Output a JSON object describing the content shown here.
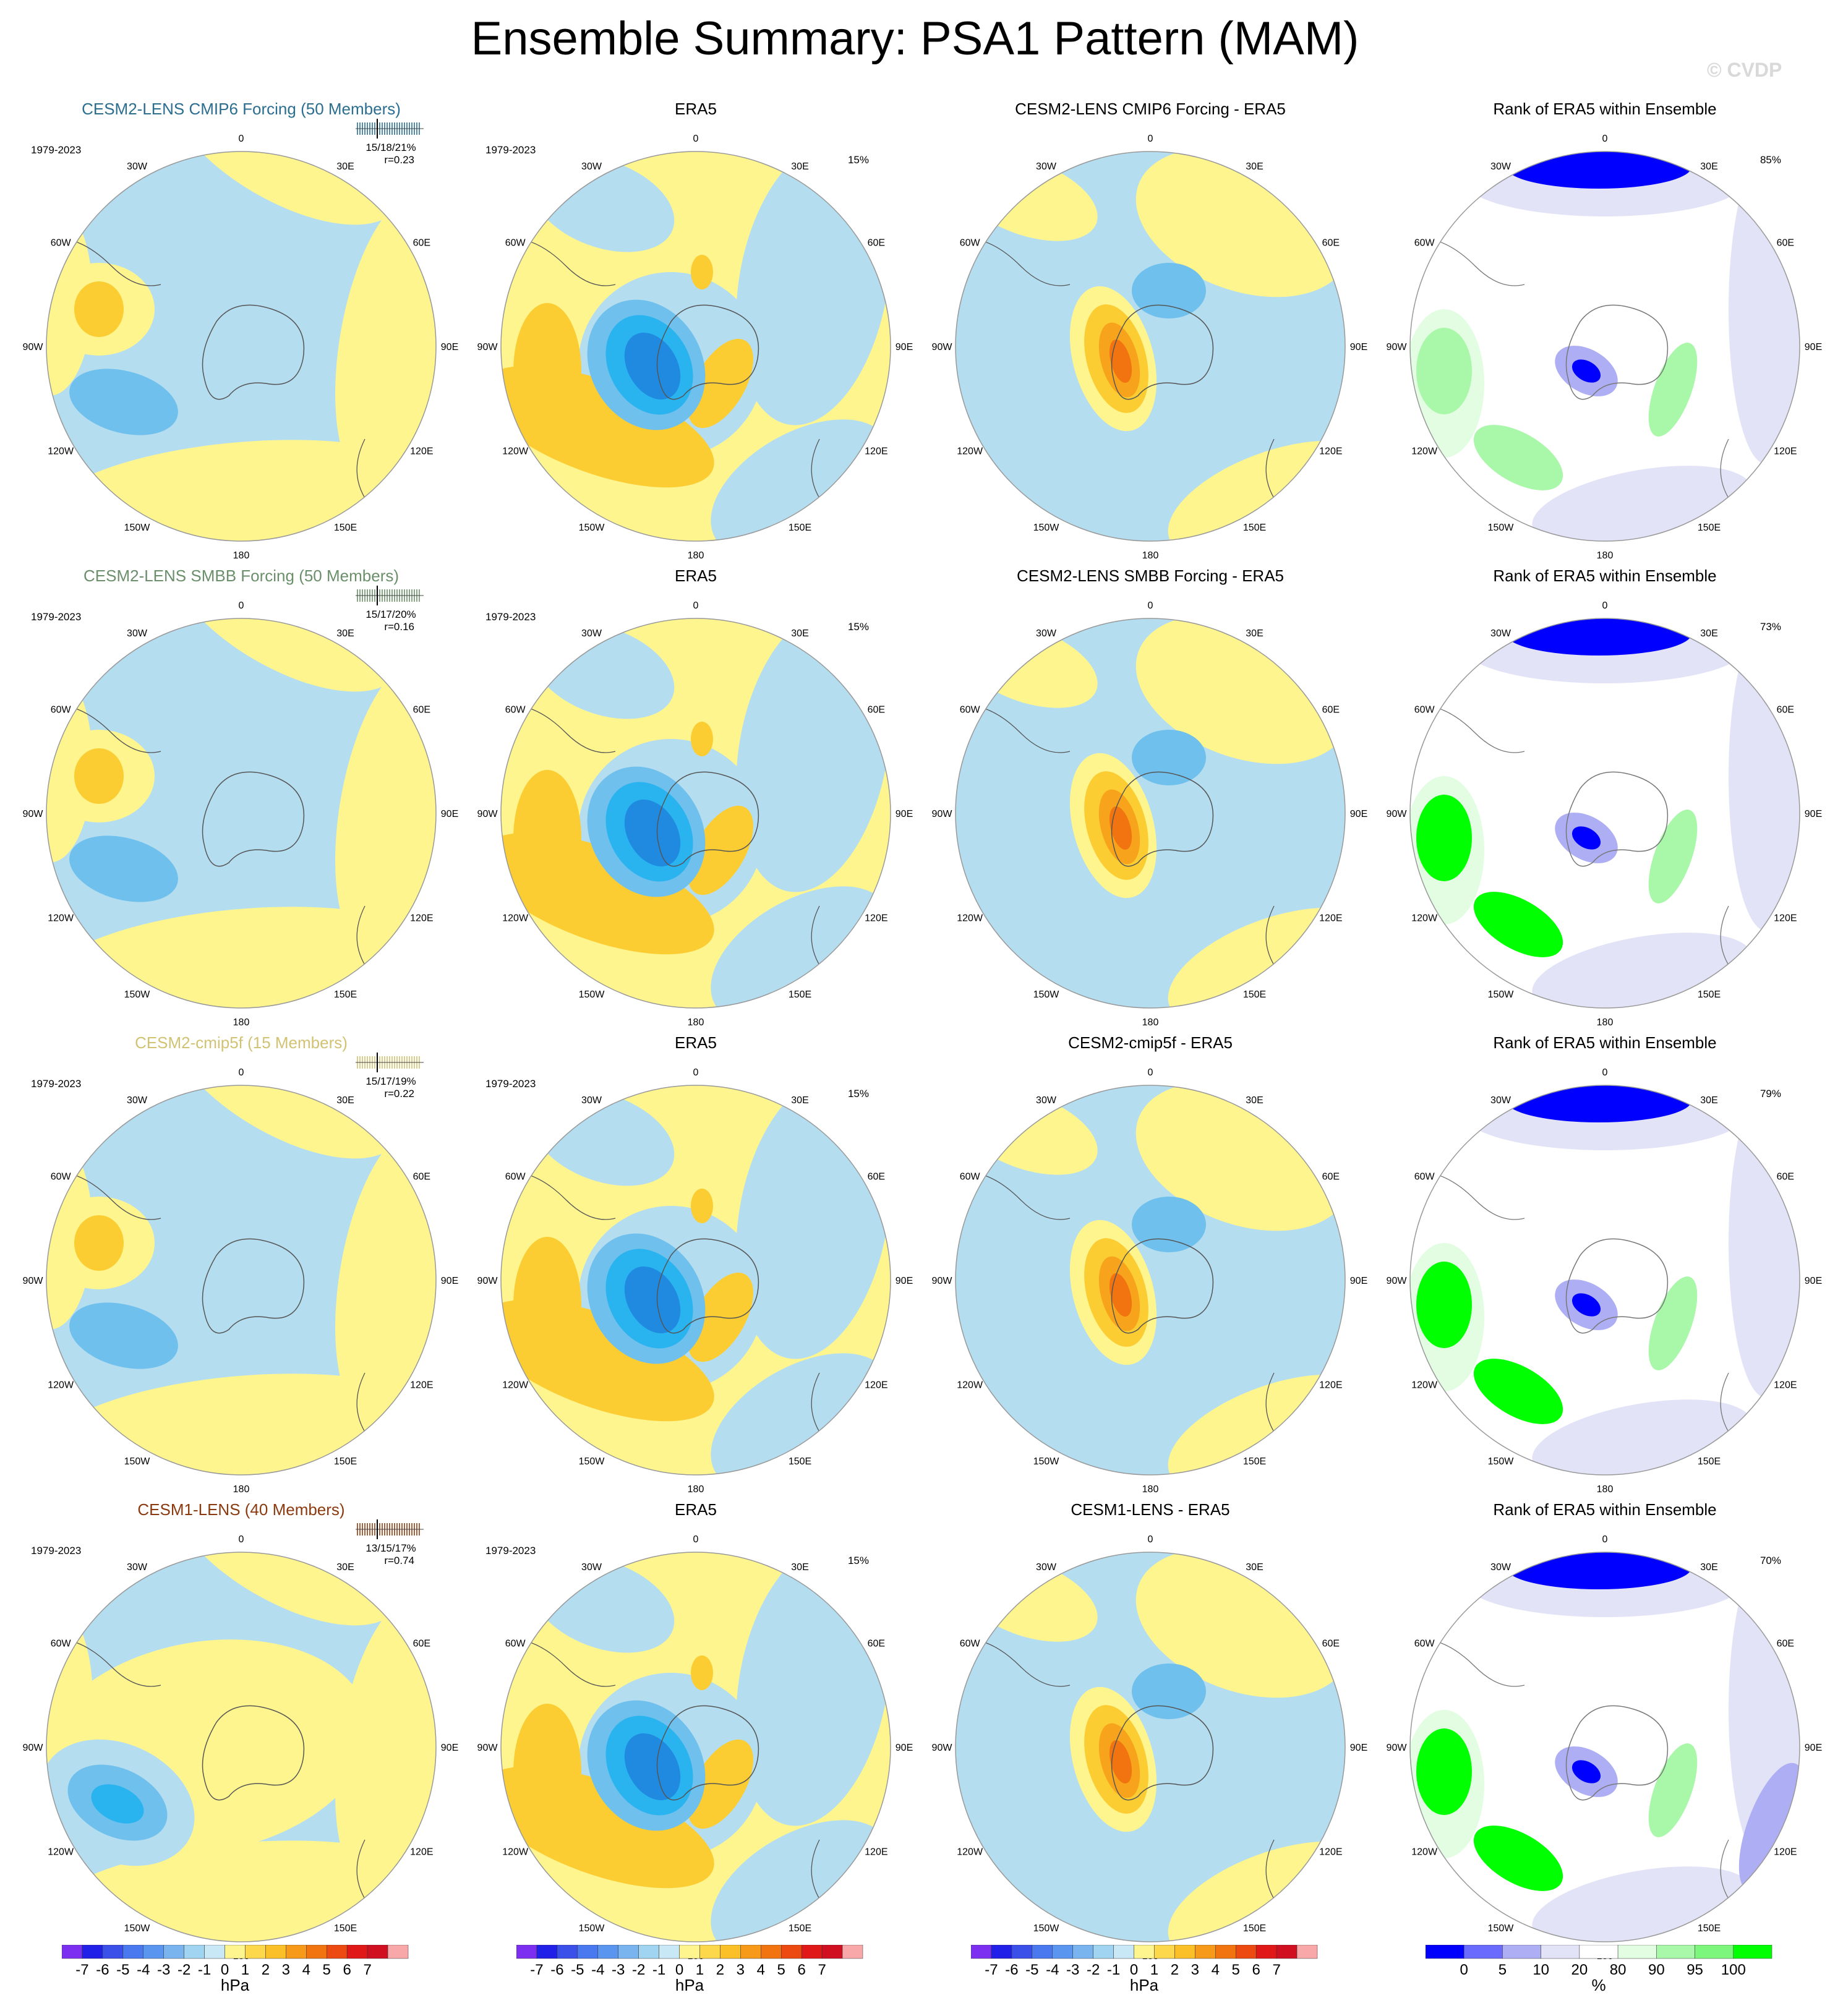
{
  "title": "Ensemble Summary: PSA1 Pattern (MAM)",
  "watermark": "© CVDP",
  "period": "1979-2023",
  "lon_labels": [
    "0",
    "30E",
    "60E",
    "90E",
    "120E",
    "150E",
    "180",
    "150W",
    "120W",
    "90W",
    "60W",
    "30W"
  ],
  "colors": {
    "neg1": "#b4ddf0",
    "neg2": "#6fc0ec",
    "neg3": "#29b4f0",
    "neg4": "#1f8ae0",
    "pos1": "#fef58f",
    "pos2": "#fccd32",
    "pos3": "#f7a31b",
    "pos4": "#f27410",
    "pos5": "#e84e10",
    "r0": "#0000ff",
    "r5": "#6a6aff",
    "r10": "#aeaef4",
    "r20": "#e3e3f8",
    "r80": "#ffffff",
    "r90": "#e2fde2",
    "r95": "#a9f7a9",
    "r99": "#7cf67c",
    "r100": "#00ff00"
  },
  "rows": [
    {
      "model": "CESM2-LENS CMIP6 Forcing (50 Members)",
      "model_color": "#2b6e8f",
      "stats": "15/18/21%",
      "corr": "r=0.23",
      "era_pct": "15%",
      "diff_title": "CESM2-LENS CMIP6 Forcing - ERA5",
      "rank_title": "Rank of ERA5 within Ensemble",
      "rank_pct": "85%"
    },
    {
      "model": "CESM2-LENS SMBB Forcing (50 Members)",
      "model_color": "#6b8f6b",
      "stats": "15/17/20%",
      "corr": "r=0.16",
      "era_pct": "15%",
      "diff_title": "CESM2-LENS SMBB Forcing - ERA5",
      "rank_title": "Rank of ERA5 within Ensemble",
      "rank_pct": "73%"
    },
    {
      "model": "CESM2-cmip5f (15 Members)",
      "model_color": "#d2c274",
      "stats": "15/17/19%",
      "corr": "r=0.22",
      "era_pct": "15%",
      "diff_title": "CESM2-cmip5f - ERA5",
      "rank_title": "Rank of ERA5 within Ensemble",
      "rank_pct": "79%"
    },
    {
      "model": "CESM1-LENS (40 Members)",
      "model_color": "#8b3a10",
      "stats": "13/15/17%",
      "corr": "r=0.74",
      "era_pct": "15%",
      "diff_title": "CESM1-LENS - ERA5",
      "rank_title": "Rank of ERA5 within Ensemble",
      "rank_pct": "70%"
    }
  ],
  "era_title": "ERA5",
  "chart_data": [
    {
      "type": "heatmap",
      "name": "Contour colorbar",
      "unit": "hPa",
      "tick_labels": [
        "-7",
        "-6",
        "-5",
        "-4",
        "-3",
        "-2",
        "-1",
        "0",
        "1",
        "2",
        "3",
        "4",
        "5",
        "6",
        "7"
      ],
      "bin_colors": [
        "#7c2ff0",
        "#2020e8",
        "#3a50e8",
        "#4a78ee",
        "#5a96f0",
        "#7ab4ee",
        "#a0d4f0",
        "#c8e8f5",
        "#fef58f",
        "#fcd84a",
        "#fbbf28",
        "#f79a1a",
        "#f27410",
        "#ec4a10",
        "#e01818",
        "#d01020",
        "#f8a8a8"
      ]
    },
    {
      "type": "heatmap",
      "name": "Rank colorbar",
      "unit": "%",
      "tick_labels": [
        "0",
        "5",
        "10",
        "20",
        "80",
        "90",
        "95",
        "100"
      ],
      "bin_colors": [
        "#0000ff",
        "#6a6aff",
        "#aeaef4",
        "#e3e3f8",
        "#ffffff",
        "#e2fde2",
        "#a9f7a9",
        "#7cf67c",
        "#00ff00"
      ]
    }
  ],
  "colorbars": [
    {
      "unit": "hPa",
      "ticks": [
        "-7",
        "-6",
        "-5",
        "-4",
        "-3",
        "-2",
        "-1",
        "0",
        "1",
        "2",
        "3",
        "4",
        "5",
        "6",
        "7"
      ]
    },
    {
      "unit": "hPa",
      "ticks": [
        "-7",
        "-6",
        "-5",
        "-4",
        "-3",
        "-2",
        "-1",
        "0",
        "1",
        "2",
        "3",
        "4",
        "5",
        "6",
        "7"
      ]
    },
    {
      "unit": "hPa",
      "ticks": [
        "-7",
        "-6",
        "-5",
        "-4",
        "-3",
        "-2",
        "-1",
        "0",
        "1",
        "2",
        "3",
        "4",
        "5",
        "6",
        "7"
      ]
    },
    {
      "unit": "%",
      "ticks": [
        "0",
        "5",
        "10",
        "20",
        "80",
        "90",
        "95",
        "100"
      ]
    }
  ]
}
